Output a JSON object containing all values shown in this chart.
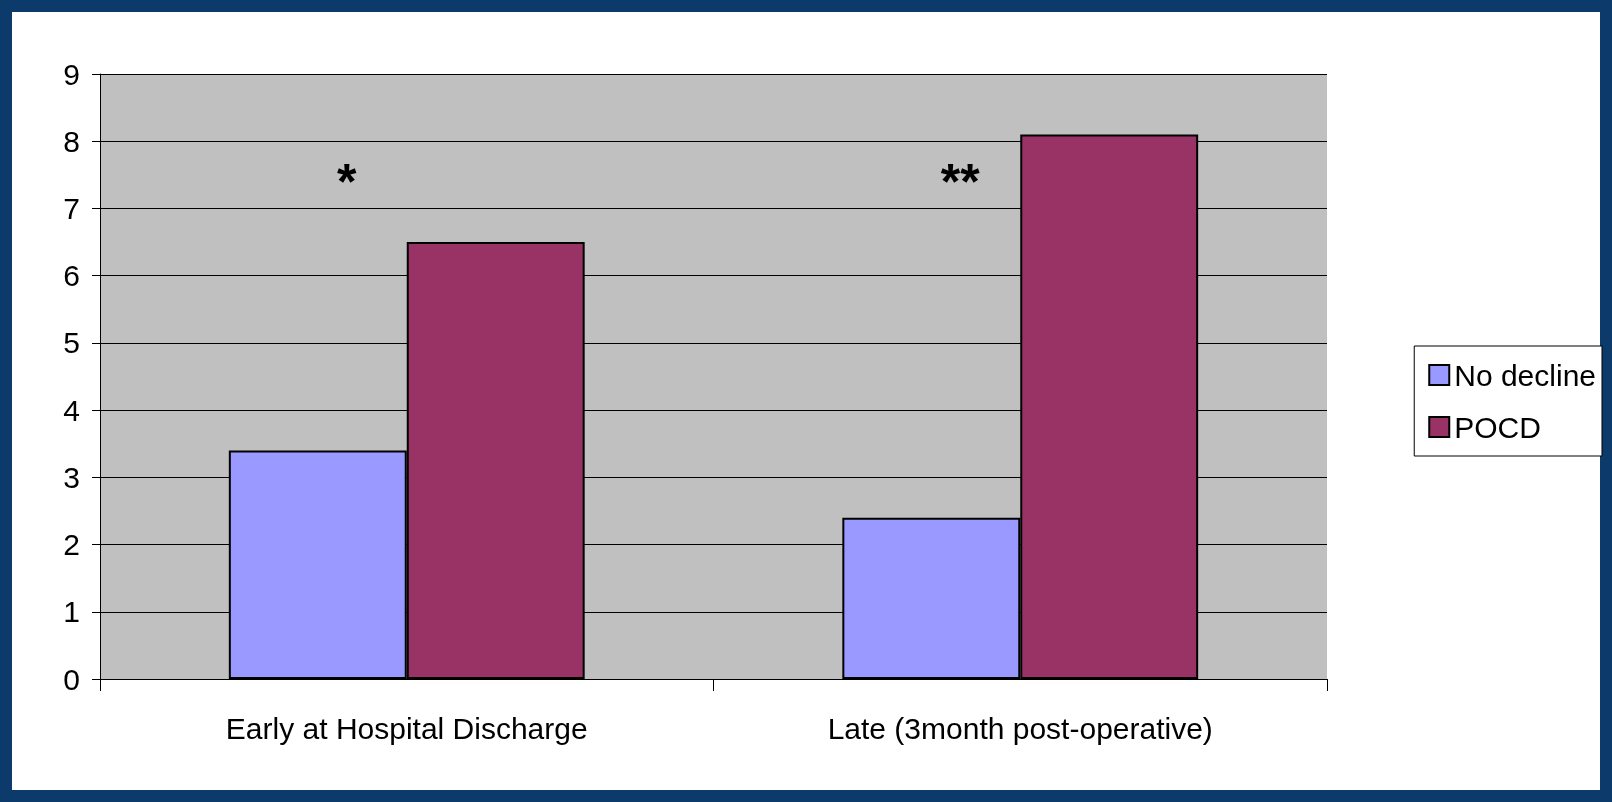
{
  "chart_data": {
    "type": "bar",
    "categories": [
      "Early at Hospital Discharge",
      "Late (3month post-operative)"
    ],
    "series": [
      {
        "name": "No decline",
        "color": "#9999ff",
        "values": [
          3.4,
          2.4
        ]
      },
      {
        "name": "POCD",
        "color": "#993366",
        "values": [
          6.5,
          8.1
        ]
      }
    ],
    "ylim": [
      0,
      9
    ],
    "yticks": [
      0,
      1,
      2,
      3,
      4,
      5,
      6,
      7,
      8,
      9
    ],
    "grid": "y",
    "legend": "right",
    "annotations": [
      "*",
      "**"
    ]
  }
}
